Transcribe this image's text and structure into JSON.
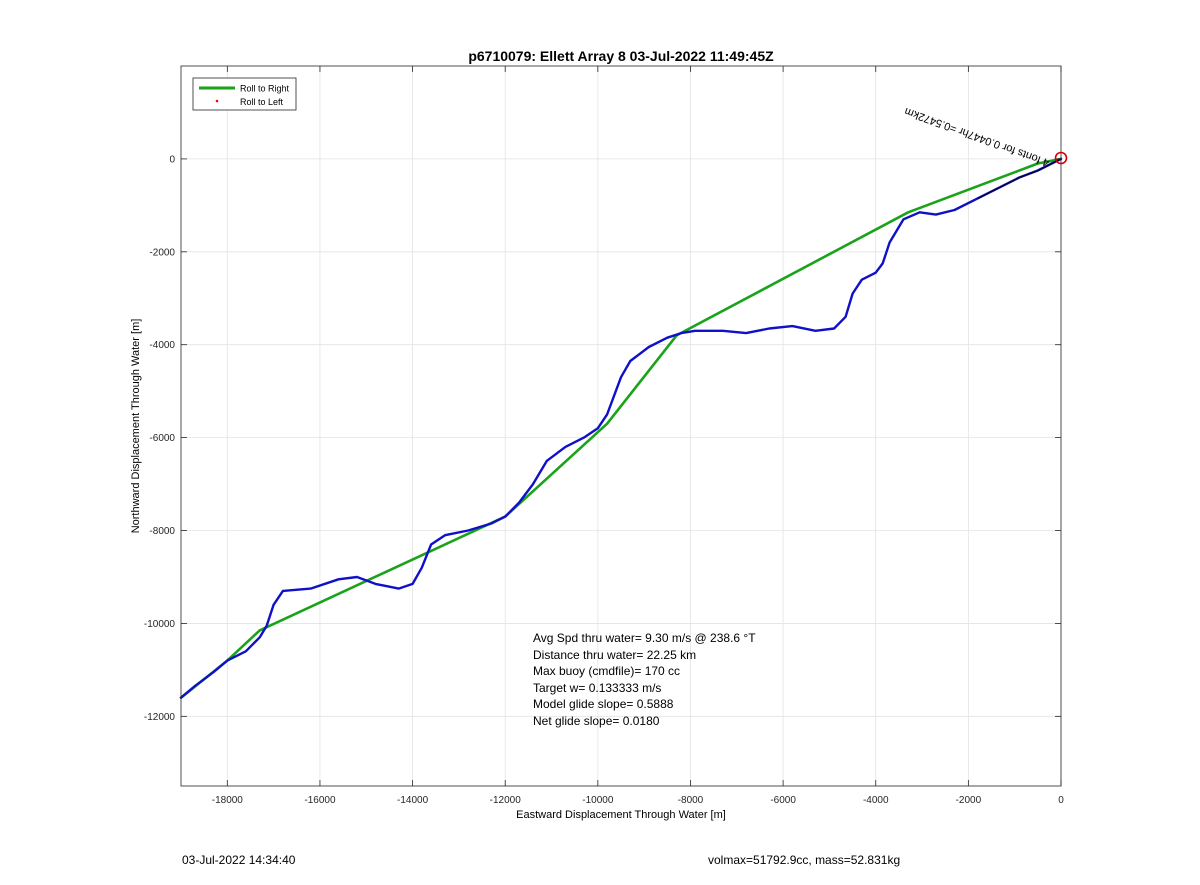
{
  "chart_data": {
    "type": "line",
    "title": "p6710079: Ellett Array 8 03-Jul-2022 11:49:45Z",
    "xlabel": "Eastward Displacement Through Water [m]",
    "ylabel": "Northward Displacement Through Water [m]",
    "xlim": [
      -19000,
      0
    ],
    "ylim": [
      -13500,
      2000
    ],
    "xticks": [
      -18000,
      -16000,
      -14000,
      -12000,
      -10000,
      -8000,
      -6000,
      -4000,
      -2000,
      0
    ],
    "yticks": [
      0,
      -2000,
      -4000,
      -6000,
      -8000,
      -10000,
      -12000
    ],
    "grid": true,
    "legend": {
      "position": "top-left",
      "entries": [
        "Roll to Right",
        "Roll to Left"
      ]
    },
    "colors": {
      "roll_right": "#1aa31a",
      "roll_left": "#ff0000",
      "track": "#1010c8",
      "start_marker": "#d40000"
    },
    "series": [
      {
        "name": "Roll to Right",
        "x": [
          -19000,
          -18000,
          -17300,
          -12000,
          -9800,
          -8300,
          -3300,
          -500,
          0
        ],
        "y": [
          -11600,
          -10800,
          -10150,
          -7700,
          -5700,
          -3800,
          -1150,
          -100,
          0
        ]
      },
      {
        "name": "Roll to Left",
        "x": [],
        "y": []
      },
      {
        "name": "track",
        "x": [
          -19000,
          -18700,
          -18300,
          -18000,
          -17600,
          -17300,
          -17150,
          -17000,
          -16800,
          -16200,
          -15600,
          -15200,
          -14800,
          -14300,
          -14000,
          -13800,
          -13600,
          -13300,
          -12800,
          -12300,
          -12000,
          -11700,
          -11400,
          -11100,
          -10700,
          -10300,
          -10000,
          -9800,
          -9500,
          -9300,
          -8900,
          -8500,
          -8200,
          -7900,
          -7300,
          -6800,
          -6300,
          -5800,
          -5300,
          -4900,
          -4650,
          -4500,
          -4300,
          -4000,
          -3850,
          -3700,
          -3400,
          -3050,
          -2700,
          -2300,
          -1800,
          -1300,
          -900,
          -500,
          -200,
          0
        ],
        "y": [
          -11600,
          -11350,
          -11050,
          -10800,
          -10600,
          -10300,
          -10050,
          -9600,
          -9300,
          -9250,
          -9050,
          -9000,
          -9150,
          -9250,
          -9150,
          -8800,
          -8300,
          -8100,
          -8000,
          -7850,
          -7700,
          -7400,
          -7000,
          -6500,
          -6200,
          -6000,
          -5800,
          -5500,
          -4700,
          -4350,
          -4050,
          -3850,
          -3750,
          -3700,
          -3700,
          -3750,
          -3650,
          -3600,
          -3700,
          -3650,
          -3400,
          -2900,
          -2600,
          -2450,
          -2250,
          -1800,
          -1300,
          -1150,
          -1200,
          -1100,
          -850,
          -600,
          -400,
          -250,
          -100,
          0
        ]
      }
    ],
    "annotations": {
      "stats": [
        "Avg Spd thru water=  9.30 m/s @ 238.6 °T",
        "Distance thru water= 22.25 km",
        "Max buoy (cmdfile)= 170 cc",
        "Target w= 0.133333 m/s",
        "Model glide slope= 0.5888",
        "Net glide slope= 0.0180"
      ],
      "rotated_label": "4 fonts for 0.0447hr =0.5472km"
    }
  },
  "footer": {
    "left": "03-Jul-2022 14:34:40",
    "right": "volmax=51792.9cc, mass=52.831kg"
  }
}
